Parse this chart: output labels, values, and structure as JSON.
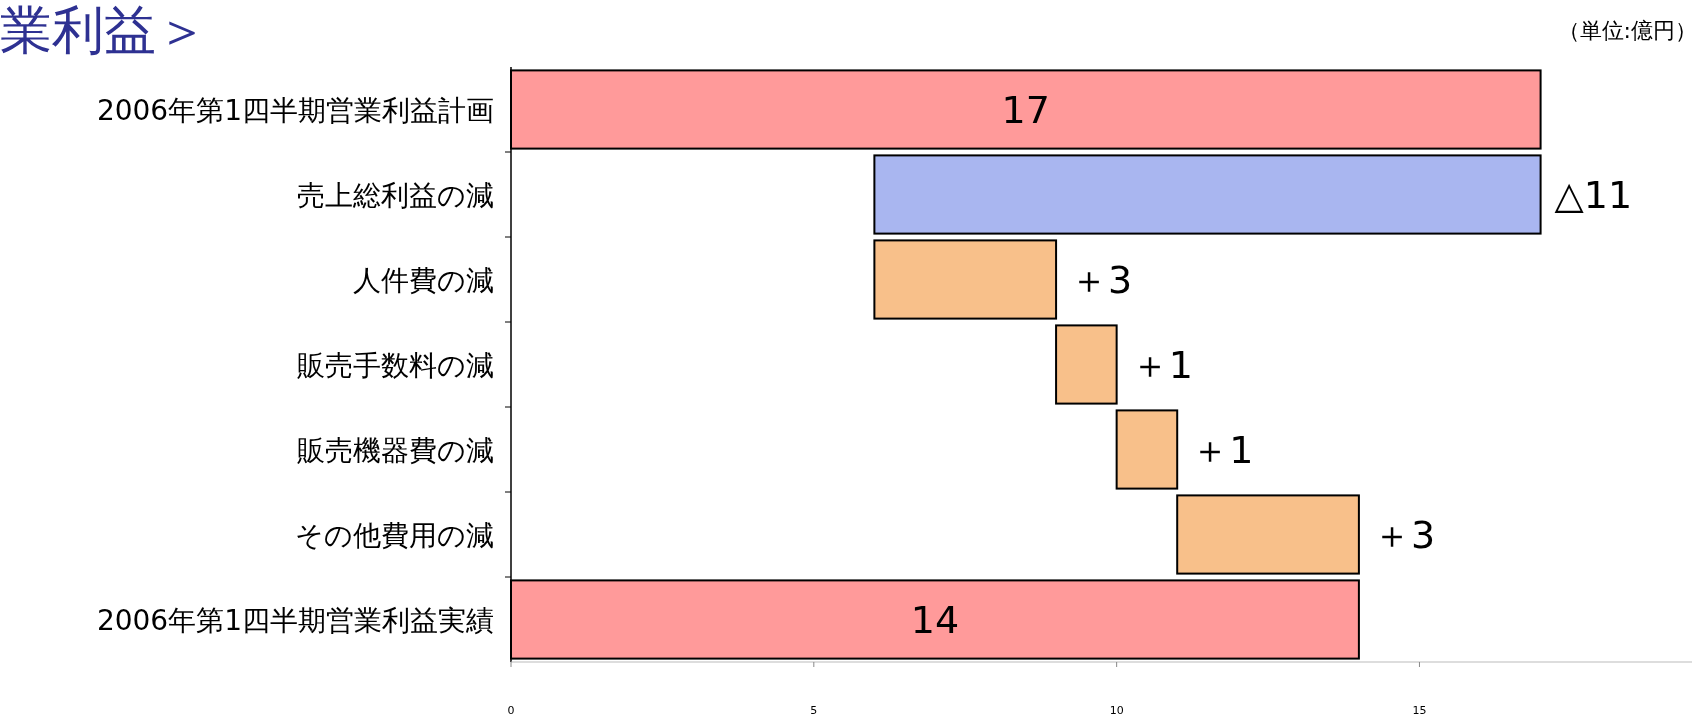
{
  "chart_data": {
    "type": "bar",
    "orientation": "horizontal",
    "title": "業利益＞",
    "annotations": [
      "（単位:億円）"
    ],
    "categories": [
      "2006年第1四半期営業利益計画",
      "売上総利益の減",
      "人件費の減",
      "販売手数料の減",
      "販売機器費の減",
      "その他費用の減",
      "2006年第1四半期営業利益実績"
    ],
    "values": [
      17,
      -11,
      3,
      1,
      1,
      3,
      14
    ],
    "base": [
      0,
      17,
      6,
      9,
      10,
      11,
      0
    ],
    "colors": [
      "#ff9a9a",
      "#a9b6f0",
      "#f8c08a",
      "#f8c08a",
      "#f8c08a",
      "#f8c08a",
      "#ff9a9a"
    ],
    "value_labels": [
      "17",
      "△11",
      "＋3",
      "＋1",
      "＋1",
      "＋3",
      "14"
    ],
    "xlim": [
      0,
      19.5
    ],
    "xticks": [
      0,
      5,
      10,
      15
    ]
  }
}
